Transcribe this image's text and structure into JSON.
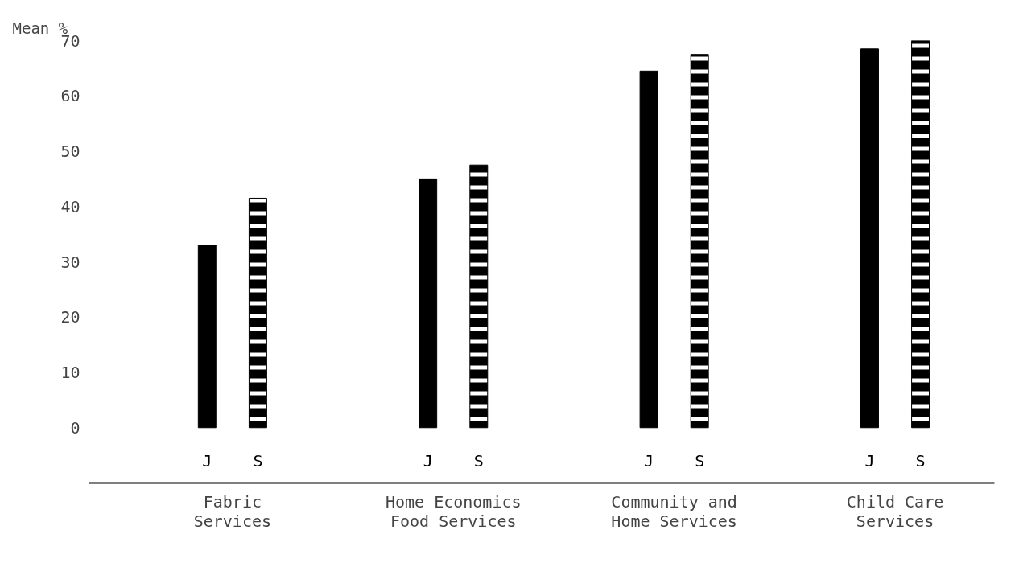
{
  "chart_data": {
    "type": "bar",
    "ylabel": "Mean %",
    "categories": [
      "Fabric Services",
      "Home Economics Food Services",
      "Community and Home Services",
      "Child Care Services"
    ],
    "series": [
      {
        "name": "J",
        "color": "#000000",
        "values": [
          33,
          45,
          64.5,
          68.5
        ]
      },
      {
        "name": "S",
        "color": "#000000",
        "values": [
          41.5,
          47.5,
          67.5,
          70
        ]
      }
    ],
    "ylim": [
      -10,
      70
    ],
    "yticks": [
      0,
      10,
      20,
      30,
      40,
      50,
      60,
      70
    ],
    "grid": false,
    "legend": false
  }
}
